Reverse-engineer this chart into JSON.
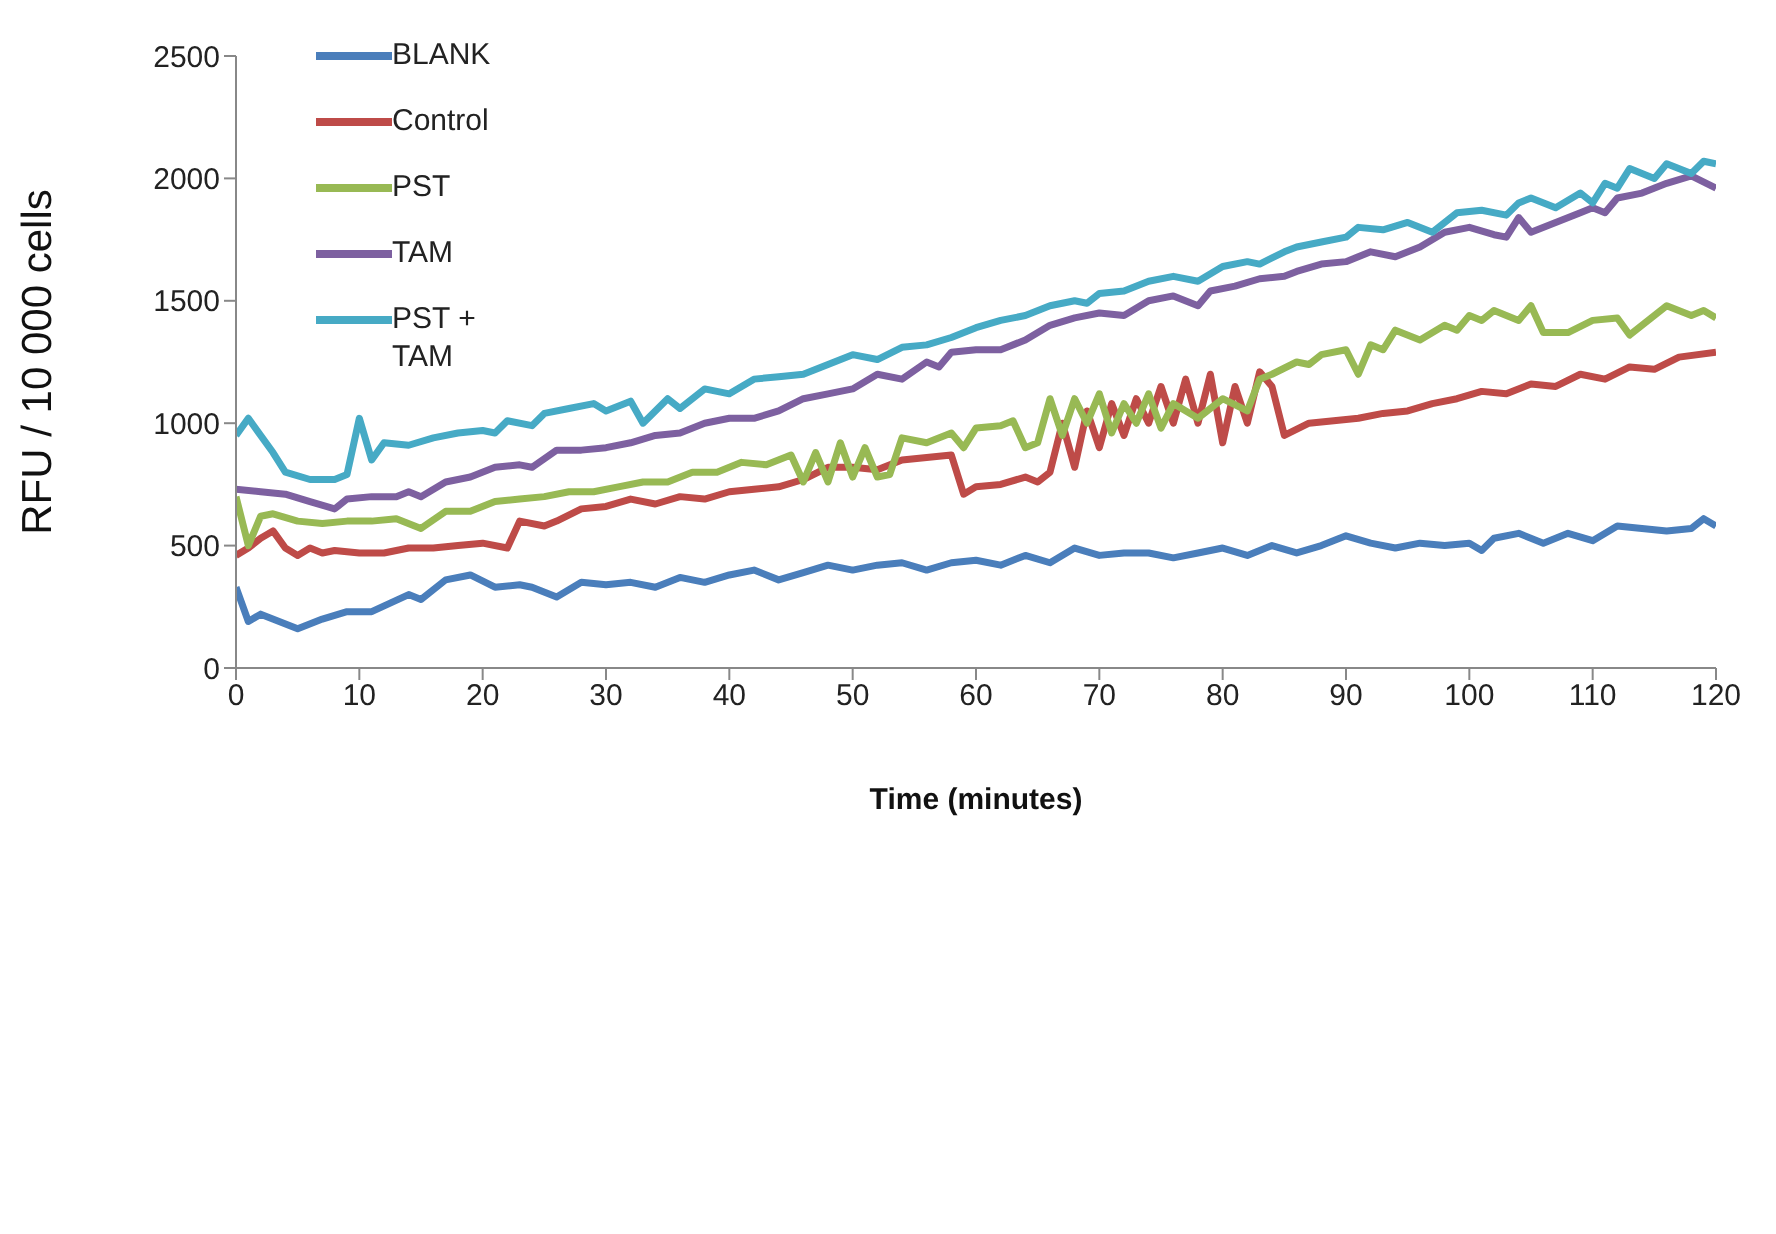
{
  "chart_data": {
    "type": "line",
    "xlabel": "Time (minutes)",
    "ylabel": "RFU / 10 000 cells",
    "xlim": [
      0,
      120
    ],
    "xticks": [
      0,
      10,
      20,
      30,
      40,
      50,
      60,
      70,
      80,
      90,
      100,
      110,
      120
    ],
    "ylim": [
      0,
      2500
    ],
    "yticks": [
      0,
      500,
      1000,
      1500,
      2000,
      2500
    ],
    "grid": false,
    "legend": "top left",
    "marker": "none",
    "line_style": "solid",
    "series": [
      {
        "name": "BLANK",
        "color": "#4a7ebb",
        "x": [
          0,
          1,
          2,
          5,
          7,
          9,
          11,
          14,
          15,
          17,
          19,
          21,
          23,
          24,
          26,
          28,
          30,
          32,
          34,
          36,
          38,
          40,
          42,
          44,
          46,
          48,
          50,
          52,
          54,
          56,
          58,
          60,
          62,
          64,
          66,
          68,
          70,
          72,
          74,
          76,
          78,
          80,
          82,
          84,
          86,
          88,
          90,
          92,
          94,
          96,
          98,
          100,
          101,
          102,
          104,
          106,
          108,
          110,
          112,
          114,
          116,
          118,
          119,
          120
        ],
        "values": [
          330,
          190,
          220,
          160,
          200,
          230,
          230,
          300,
          280,
          360,
          380,
          330,
          340,
          330,
          290,
          350,
          340,
          350,
          330,
          370,
          350,
          380,
          400,
          360,
          390,
          420,
          400,
          420,
          430,
          400,
          430,
          440,
          420,
          460,
          430,
          490,
          460,
          470,
          470,
          450,
          470,
          490,
          460,
          500,
          470,
          500,
          540,
          510,
          490,
          510,
          500,
          510,
          480,
          530,
          550,
          510,
          550,
          520,
          580,
          570,
          560,
          570,
          610,
          580
        ]
      },
      {
        "name": "Control",
        "color": "#be4b48",
        "x": [
          0,
          1,
          2,
          3,
          4,
          5,
          6,
          7,
          8,
          10,
          12,
          14,
          16,
          18,
          20,
          22,
          23,
          25,
          26,
          28,
          30,
          32,
          34,
          36,
          38,
          40,
          42,
          44,
          46,
          48,
          50,
          52,
          54,
          56,
          58,
          59,
          60,
          62,
          64,
          65,
          66,
          67,
          68,
          69,
          70,
          71,
          72,
          73,
          74,
          75,
          76,
          77,
          78,
          79,
          80,
          81,
          82,
          83,
          84,
          85,
          87,
          89,
          91,
          93,
          95,
          97,
          99,
          101,
          103,
          105,
          107,
          109,
          111,
          113,
          115,
          117,
          120
        ],
        "values": [
          460,
          490,
          530,
          560,
          490,
          460,
          490,
          470,
          480,
          470,
          470,
          490,
          490,
          500,
          510,
          490,
          600,
          580,
          600,
          650,
          660,
          690,
          670,
          700,
          690,
          720,
          730,
          740,
          770,
          820,
          820,
          810,
          850,
          860,
          870,
          710,
          740,
          750,
          780,
          760,
          800,
          1000,
          820,
          1050,
          900,
          1080,
          950,
          1100,
          1000,
          1150,
          1000,
          1180,
          1000,
          1200,
          920,
          1150,
          1000,
          1210,
          1150,
          950,
          1000,
          1010,
          1020,
          1040,
          1050,
          1080,
          1100,
          1130,
          1120,
          1160,
          1150,
          1200,
          1180,
          1230,
          1220,
          1270,
          1290
        ]
      },
      {
        "name": "PST",
        "color": "#98b954",
        "x": [
          0,
          1,
          2,
          3,
          5,
          7,
          9,
          11,
          13,
          15,
          17,
          19,
          21,
          23,
          25,
          27,
          29,
          31,
          33,
          35,
          37,
          39,
          41,
          43,
          45,
          46,
          47,
          48,
          49,
          50,
          51,
          52,
          53,
          54,
          56,
          58,
          59,
          60,
          62,
          63,
          64,
          65,
          66,
          67,
          68,
          69,
          70,
          71,
          72,
          73,
          74,
          75,
          76,
          78,
          80,
          82,
          83,
          84,
          86,
          87,
          88,
          90,
          91,
          92,
          93,
          94,
          96,
          98,
          99,
          100,
          101,
          102,
          104,
          105,
          106,
          108,
          110,
          112,
          113,
          115,
          116,
          118,
          119,
          120
        ],
        "values": [
          700,
          500,
          620,
          630,
          600,
          590,
          600,
          600,
          610,
          570,
          640,
          640,
          680,
          690,
          700,
          720,
          720,
          740,
          760,
          760,
          800,
          800,
          840,
          830,
          870,
          760,
          880,
          760,
          920,
          780,
          900,
          780,
          790,
          940,
          920,
          960,
          900,
          980,
          990,
          1010,
          900,
          920,
          1100,
          950,
          1100,
          1000,
          1120,
          960,
          1080,
          1000,
          1120,
          980,
          1080,
          1020,
          1100,
          1050,
          1180,
          1200,
          1250,
          1240,
          1280,
          1300,
          1200,
          1320,
          1300,
          1380,
          1340,
          1400,
          1380,
          1440,
          1420,
          1460,
          1420,
          1480,
          1370,
          1370,
          1420,
          1430,
          1360,
          1440,
          1480,
          1440,
          1460,
          1430
        ]
      },
      {
        "name": "TAM",
        "color": "#7d60a0",
        "x": [
          0,
          2,
          4,
          6,
          8,
          9,
          11,
          13,
          14,
          15,
          17,
          19,
          21,
          23,
          24,
          26,
          28,
          30,
          32,
          34,
          36,
          38,
          40,
          42,
          44,
          46,
          48,
          50,
          52,
          54,
          56,
          57,
          58,
          60,
          62,
          64,
          66,
          68,
          70,
          72,
          74,
          76,
          78,
          79,
          81,
          83,
          85,
          86,
          88,
          90,
          92,
          94,
          96,
          98,
          100,
          102,
          103,
          104,
          105,
          107,
          109,
          110,
          111,
          112,
          114,
          116,
          118,
          120
        ],
        "values": [
          730,
          720,
          710,
          680,
          650,
          690,
          700,
          700,
          720,
          700,
          760,
          780,
          820,
          830,
          820,
          890,
          890,
          900,
          920,
          950,
          960,
          1000,
          1020,
          1020,
          1050,
          1100,
          1120,
          1140,
          1200,
          1180,
          1250,
          1230,
          1290,
          1300,
          1300,
          1340,
          1400,
          1430,
          1450,
          1440,
          1500,
          1520,
          1480,
          1540,
          1560,
          1590,
          1600,
          1620,
          1650,
          1660,
          1700,
          1680,
          1720,
          1780,
          1800,
          1770,
          1760,
          1840,
          1780,
          1820,
          1860,
          1880,
          1860,
          1920,
          1940,
          1980,
          2010,
          1960
        ]
      },
      {
        "name": "PST + TAM",
        "color": "#46aac5",
        "x": [
          0,
          1,
          3,
          4,
          6,
          8,
          9,
          10,
          11,
          12,
          14,
          16,
          18,
          20,
          21,
          22,
          24,
          25,
          27,
          29,
          30,
          32,
          33,
          35,
          36,
          37,
          38,
          40,
          42,
          44,
          46,
          48,
          50,
          52,
          54,
          56,
          58,
          60,
          62,
          64,
          66,
          68,
          69,
          70,
          72,
          74,
          76,
          78,
          80,
          82,
          83,
          85,
          86,
          88,
          90,
          91,
          93,
          95,
          97,
          99,
          101,
          103,
          104,
          105,
          107,
          109,
          110,
          111,
          112,
          113,
          115,
          116,
          118,
          119,
          120
        ],
        "values": [
          950,
          1020,
          880,
          800,
          770,
          770,
          790,
          1020,
          850,
          920,
          910,
          940,
          960,
          970,
          960,
          1010,
          990,
          1040,
          1060,
          1080,
          1050,
          1090,
          1000,
          1100,
          1060,
          1100,
          1140,
          1120,
          1180,
          1190,
          1200,
          1240,
          1280,
          1260,
          1310,
          1320,
          1350,
          1390,
          1420,
          1440,
          1480,
          1500,
          1490,
          1530,
          1540,
          1580,
          1600,
          1580,
          1640,
          1660,
          1650,
          1700,
          1720,
          1740,
          1760,
          1800,
          1790,
          1820,
          1780,
          1860,
          1870,
          1850,
          1900,
          1920,
          1880,
          1940,
          1900,
          1980,
          1960,
          2040,
          2000,
          2060,
          2020,
          2070,
          2060
        ]
      }
    ]
  }
}
